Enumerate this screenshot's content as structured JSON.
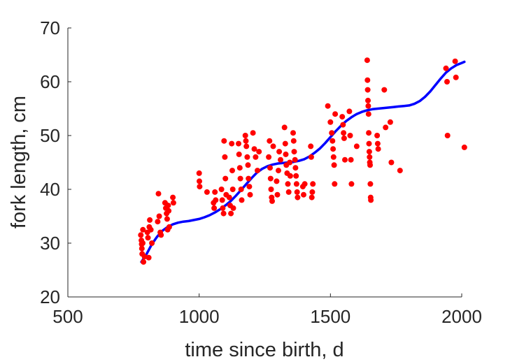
{
  "chart_data": {
    "type": "scatter",
    "xlabel": "time since birth, d",
    "ylabel": "fork length, cm",
    "xlim": [
      500,
      2000
    ],
    "ylim": [
      20,
      70
    ],
    "xticks": [
      500,
      1000,
      1500,
      2000
    ],
    "yticks": [
      20,
      30,
      40,
      50,
      60,
      70
    ],
    "grid": false,
    "series": [
      {
        "kind": "points",
        "color": "#ff0000",
        "points": [
          [
            778,
            31.5
          ],
          [
            780,
            30.5
          ],
          [
            781,
            29.8
          ],
          [
            782,
            29.0
          ],
          [
            783,
            28.0
          ],
          [
            785,
            30.0
          ],
          [
            786,
            32.5
          ],
          [
            788,
            26.5
          ],
          [
            792,
            27.5
          ],
          [
            803,
            32.0
          ],
          [
            805,
            31.0
          ],
          [
            808,
            27.3
          ],
          [
            810,
            33.0
          ],
          [
            812,
            34.3
          ],
          [
            816,
            32.5
          ],
          [
            820,
            30.0
          ],
          [
            842,
            34.0
          ],
          [
            845,
            39.2
          ],
          [
            848,
            35.0
          ],
          [
            852,
            32.0
          ],
          [
            855,
            31.5
          ],
          [
            870,
            37.5
          ],
          [
            873,
            36.5
          ],
          [
            876,
            35.5
          ],
          [
            878,
            34.5
          ],
          [
            880,
            32.5
          ],
          [
            882,
            37.0
          ],
          [
            884,
            36.0
          ],
          [
            886,
            33.0
          ],
          [
            900,
            38.5
          ],
          [
            902,
            37.5
          ],
          [
            1000,
            43.0
          ],
          [
            1001,
            41.5
          ],
          [
            1002,
            40.5
          ],
          [
            1030,
            39.5
          ],
          [
            1055,
            37.5
          ],
          [
            1057,
            36.5
          ],
          [
            1060,
            39.5
          ],
          [
            1063,
            38.0
          ],
          [
            1085,
            40.0
          ],
          [
            1088,
            38.0
          ],
          [
            1090,
            36.5
          ],
          [
            1093,
            35.5
          ],
          [
            1095,
            49.0
          ],
          [
            1098,
            46.0
          ],
          [
            1100,
            42.0
          ],
          [
            1103,
            39.0
          ],
          [
            1115,
            38.5
          ],
          [
            1118,
            37.0
          ],
          [
            1121,
            35.5
          ],
          [
            1124,
            48.5
          ],
          [
            1126,
            43.5
          ],
          [
            1128,
            40.0
          ],
          [
            1130,
            36.5
          ],
          [
            1150,
            48.5
          ],
          [
            1152,
            46.5
          ],
          [
            1155,
            44.0
          ],
          [
            1157,
            42.0
          ],
          [
            1160,
            40.0
          ],
          [
            1162,
            38.0
          ],
          [
            1176,
            50.0
          ],
          [
            1178,
            49.0
          ],
          [
            1180,
            48.0
          ],
          [
            1183,
            46.0
          ],
          [
            1186,
            44.5
          ],
          [
            1188,
            42.0
          ],
          [
            1191,
            40.5
          ],
          [
            1194,
            39.0
          ],
          [
            1205,
            50.5
          ],
          [
            1210,
            47.5
          ],
          [
            1215,
            46.0
          ],
          [
            1222,
            43.5
          ],
          [
            1228,
            47.0
          ],
          [
            1265,
            46.0
          ],
          [
            1268,
            49.0
          ],
          [
            1270,
            44.0
          ],
          [
            1272,
            42.0
          ],
          [
            1274,
            40.0
          ],
          [
            1276,
            38.5
          ],
          [
            1278,
            37.8
          ],
          [
            1282,
            48.0
          ],
          [
            1295,
            41.5
          ],
          [
            1298,
            39.0
          ],
          [
            1302,
            43.5
          ],
          [
            1305,
            47.0
          ],
          [
            1310,
            45.5
          ],
          [
            1325,
            51.5
          ],
          [
            1328,
            48.5
          ],
          [
            1330,
            46.5
          ],
          [
            1332,
            44.5
          ],
          [
            1335,
            43.0
          ],
          [
            1338,
            41.0
          ],
          [
            1341,
            39.5
          ],
          [
            1345,
            45.0
          ],
          [
            1347,
            42.5
          ],
          [
            1358,
            50.5
          ],
          [
            1360,
            49.0
          ],
          [
            1362,
            47.0
          ],
          [
            1365,
            45.5
          ],
          [
            1367,
            44.0
          ],
          [
            1369,
            42.5
          ],
          [
            1371,
            41.0
          ],
          [
            1373,
            39.5
          ],
          [
            1375,
            38.5
          ],
          [
            1395,
            40.5
          ],
          [
            1398,
            39.0
          ],
          [
            1402,
            41.0
          ],
          [
            1425,
            48.0
          ],
          [
            1427,
            46.0
          ],
          [
            1429,
            38.5
          ],
          [
            1431,
            39.5
          ],
          [
            1433,
            41.0
          ],
          [
            1490,
            55.5
          ],
          [
            1500,
            52.5
          ],
          [
            1505,
            50.5
          ],
          [
            1508,
            49.0
          ],
          [
            1510,
            47.5
          ],
          [
            1512,
            46.0
          ],
          [
            1514,
            44.5
          ],
          [
            1516,
            41.0
          ],
          [
            1518,
            54.0
          ],
          [
            1545,
            53.5
          ],
          [
            1548,
            52.0
          ],
          [
            1550,
            50.5
          ],
          [
            1552,
            49.5
          ],
          [
            1555,
            45.5
          ],
          [
            1572,
            54.5
          ],
          [
            1575,
            50.0
          ],
          [
            1578,
            45.5
          ],
          [
            1580,
            41.0
          ],
          [
            1600,
            48.0
          ],
          [
            1640,
            64.0
          ],
          [
            1641,
            60.3
          ],
          [
            1642,
            58.5
          ],
          [
            1643,
            56.5
          ],
          [
            1644,
            55.5
          ],
          [
            1645,
            54.0
          ],
          [
            1646,
            50.5
          ],
          [
            1647,
            48.5
          ],
          [
            1648,
            47.0
          ],
          [
            1649,
            46.0
          ],
          [
            1650,
            45.0
          ],
          [
            1651,
            44.5
          ],
          [
            1652,
            41.0
          ],
          [
            1653,
            38.5
          ],
          [
            1654,
            38.0
          ],
          [
            1678,
            50.0
          ],
          [
            1680,
            48.5
          ],
          [
            1682,
            47.5
          ],
          [
            1705,
            58.5
          ],
          [
            1710,
            51.5
          ],
          [
            1728,
            52.5
          ],
          [
            1732,
            45.0
          ],
          [
            1765,
            43.5
          ],
          [
            1940,
            62.5
          ],
          [
            1944,
            60.0
          ],
          [
            1946,
            50.0
          ],
          [
            1975,
            63.8
          ],
          [
            1978,
            60.8
          ],
          [
            2010,
            47.8
          ]
        ]
      },
      {
        "kind": "line",
        "color": "#0000ff",
        "points": [
          [
            780,
            26.5
          ],
          [
            800,
            28.0
          ],
          [
            820,
            29.8
          ],
          [
            840,
            31.2
          ],
          [
            860,
            32.3
          ],
          [
            880,
            33.0
          ],
          [
            900,
            33.5
          ],
          [
            920,
            33.8
          ],
          [
            940,
            34.0
          ],
          [
            960,
            34.1
          ],
          [
            980,
            34.3
          ],
          [
            1000,
            34.5
          ],
          [
            1020,
            34.8
          ],
          [
            1040,
            35.2
          ],
          [
            1060,
            35.7
          ],
          [
            1080,
            36.3
          ],
          [
            1100,
            37.0
          ],
          [
            1120,
            37.8
          ],
          [
            1140,
            38.8
          ],
          [
            1160,
            39.9
          ],
          [
            1180,
            41.0
          ],
          [
            1200,
            42.1
          ],
          [
            1220,
            43.1
          ],
          [
            1240,
            43.8
          ],
          [
            1260,
            44.3
          ],
          [
            1280,
            44.6
          ],
          [
            1300,
            44.8
          ],
          [
            1320,
            44.9
          ],
          [
            1340,
            45.0
          ],
          [
            1360,
            45.1
          ],
          [
            1380,
            45.3
          ],
          [
            1400,
            45.6
          ],
          [
            1420,
            46.1
          ],
          [
            1440,
            46.8
          ],
          [
            1460,
            47.6
          ],
          [
            1480,
            48.6
          ],
          [
            1500,
            49.7
          ],
          [
            1520,
            50.8
          ],
          [
            1540,
            51.8
          ],
          [
            1560,
            52.7
          ],
          [
            1580,
            53.4
          ],
          [
            1600,
            54.0
          ],
          [
            1620,
            54.4
          ],
          [
            1640,
            54.7
          ],
          [
            1660,
            54.9
          ],
          [
            1680,
            55.0
          ],
          [
            1700,
            55.1
          ],
          [
            1720,
            55.2
          ],
          [
            1740,
            55.3
          ],
          [
            1760,
            55.4
          ],
          [
            1780,
            55.5
          ],
          [
            1800,
            55.6
          ],
          [
            1820,
            55.9
          ],
          [
            1840,
            56.4
          ],
          [
            1860,
            57.2
          ],
          [
            1880,
            58.2
          ],
          [
            1900,
            59.4
          ],
          [
            1920,
            60.6
          ],
          [
            1940,
            61.7
          ],
          [
            1960,
            62.5
          ],
          [
            1980,
            63.1
          ],
          [
            2000,
            63.5
          ],
          [
            2010,
            63.7
          ]
        ]
      }
    ]
  }
}
